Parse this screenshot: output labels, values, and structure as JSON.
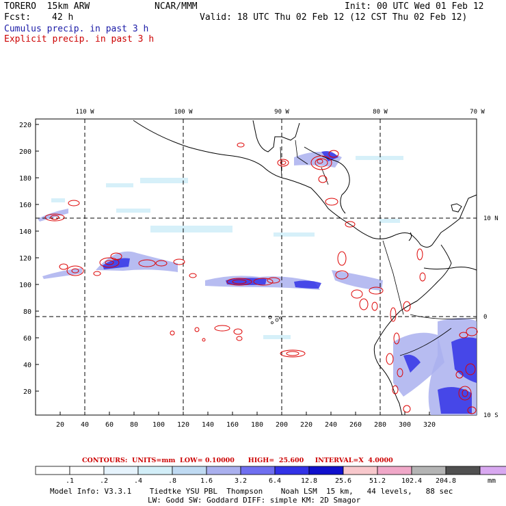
{
  "header": {
    "model_line": "TORERO  15km ARW",
    "center": "NCAR/MMM",
    "init": "Init: 00 UTC Wed 01 Feb 12",
    "fcst_label": "Fcst:",
    "fcst_value": "42 h",
    "valid": "Valid: 18 UTC Thu 02 Feb 12 (12 CST Thu 02 Feb 12)",
    "cumulus": "Cumulus precip. in past 3 h",
    "explicit": "Explicit precip. in past 3 h"
  },
  "colors": {
    "cumulus_text": "#1a1aa6",
    "explicit_text": "#cc0000",
    "contour": "#dd0000"
  },
  "axes": {
    "lon_labels": [
      "110 W",
      "100 W",
      "90 W",
      "80 W",
      "70 W"
    ],
    "lat_labels": [
      "10 N",
      "0",
      "10 S"
    ],
    "x_ticks": [
      "20",
      "40",
      "60",
      "80",
      "100",
      "120",
      "140",
      "160",
      "180",
      "200",
      "220",
      "240",
      "260",
      "280",
      "300",
      "320"
    ],
    "y_ticks": [
      "220",
      "200",
      "180",
      "160",
      "140",
      "120",
      "100",
      "80",
      "60",
      "40",
      "20"
    ]
  },
  "contours": {
    "text": "CONTOURS:  UNITS=mm  LOW= 0.10000      HIGH=  25.600     INTERVAL=X  4.0000"
  },
  "legend": {
    "unit": "mm",
    "labels": [
      ".1",
      ".2",
      ".4",
      ".8",
      "1.6",
      "3.2",
      "6.4",
      "12.8",
      "25.6",
      "51.2",
      "102.4",
      "204.8"
    ],
    "colors": [
      "#ffffff",
      "#ffffff",
      "#e6f3fc",
      "#d2eef8",
      "#bfdaf2",
      "#aab0ee",
      "#6f6ff0",
      "#3232e6",
      "#1010cc",
      "#f8c8cc",
      "#f0a8c8",
      "#b4b4b4",
      "#505050",
      "#d8a8f0"
    ]
  },
  "footer": {
    "line1": "Model Info: V3.3.1    Tiedtke YSU PBL  Thompson    Noah LSM  15 km,   44 levels,   88 sec",
    "line2": "LW: Godd SW: Goddard DIFF: simple KM: 2D Smagor"
  }
}
